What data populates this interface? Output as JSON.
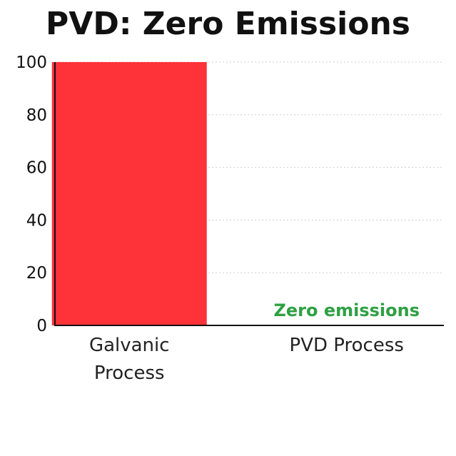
{
  "chart_data": {
    "type": "bar",
    "title": "PVD: Zero Emissions",
    "xlabel": "",
    "ylabel": "",
    "categories": [
      [
        "Galvanic",
        "Process"
      ],
      [
        "PVD Process"
      ]
    ],
    "values": [
      100,
      0
    ],
    "ylim": [
      0,
      100
    ],
    "yticks": [
      "0",
      "20",
      "40",
      "60",
      "80",
      "100"
    ],
    "grid": true,
    "bar_colors": [
      "#fe3239",
      "#2ea043"
    ],
    "annotations": [
      {
        "category_index": 1,
        "text": "Zero emissions",
        "color": "#2ea043"
      }
    ]
  }
}
